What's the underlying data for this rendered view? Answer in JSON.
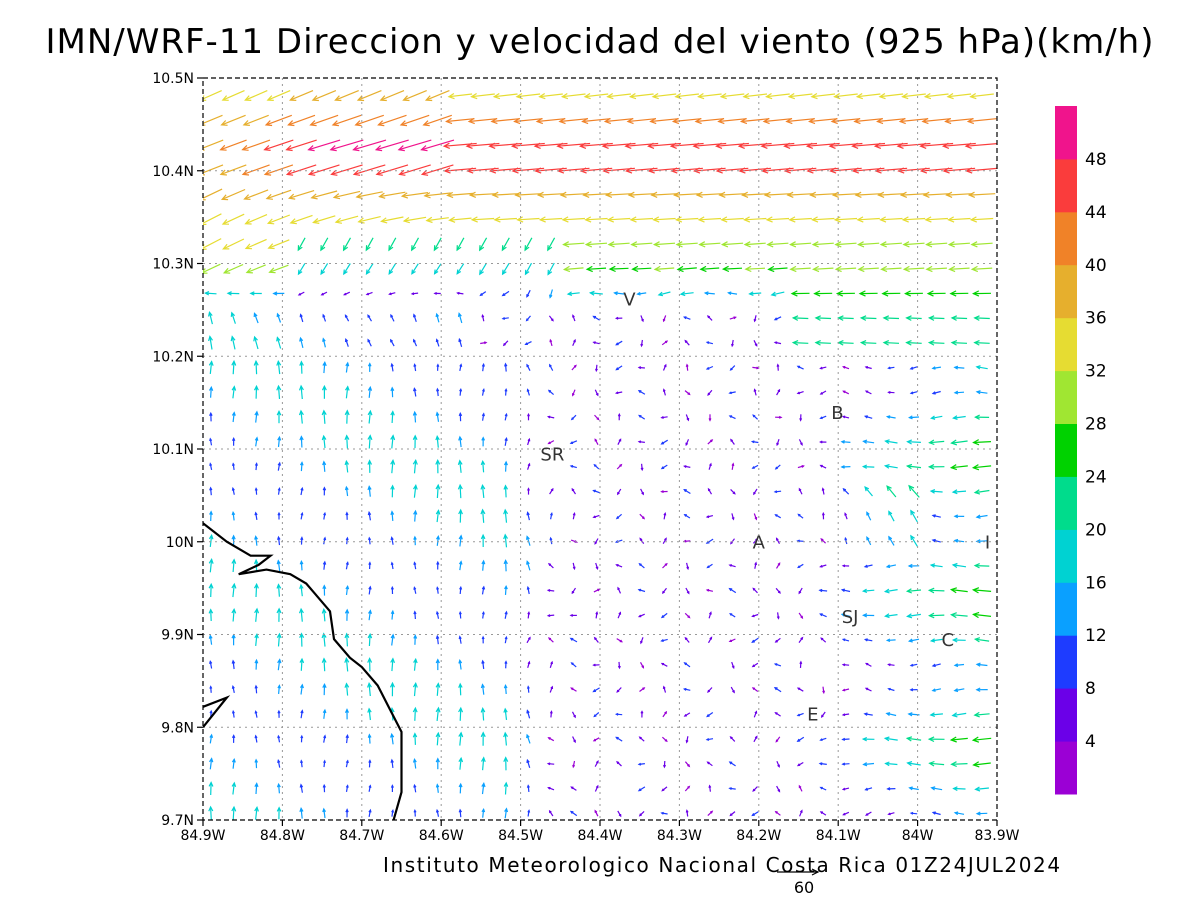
{
  "chart_data": {
    "type": "vector_field",
    "title": "IMN/WRF-11 Direccion y velocidad del viento (925 hPa)(km/h)",
    "footer": "Instituto Meteorologico Nacional Costa Rica 01Z24JUL2024",
    "reference_vector_label": "60",
    "x_axis": {
      "range": [
        -84.9,
        -83.9
      ],
      "ticks": [
        "84.9W",
        "84.8W",
        "84.7W",
        "84.6W",
        "84.5W",
        "84.4W",
        "84.3W",
        "84.2W",
        "84.1W",
        "84W",
        "83.9W"
      ]
    },
    "y_axis": {
      "range": [
        9.7,
        10.5
      ],
      "ticks": [
        "9.7N",
        "9.8N",
        "9.9N",
        "10N",
        "10.1N",
        "10.2N",
        "10.3N",
        "10.4N",
        "10.5N"
      ]
    },
    "grid": "dotted",
    "colorbar": {
      "labels": [
        "4",
        "8",
        "12",
        "16",
        "20",
        "24",
        "28",
        "32",
        "36",
        "40",
        "44",
        "48"
      ],
      "colors": [
        "#9b00d5",
        "#6b00e8",
        "#1e3cff",
        "#0aa0ff",
        "#00d2d2",
        "#00dc8c",
        "#00d200",
        "#a0e632",
        "#e6dc32",
        "#e6af2d",
        "#f08228",
        "#fa3c3c",
        "#f0148c"
      ]
    },
    "locations": [
      {
        "label": "V",
        "lon": -84.363,
        "lat": 10.262
      },
      {
        "label": "B",
        "lon": -84.101,
        "lat": 10.14
      },
      {
        "label": "SR",
        "lon": -84.46,
        "lat": 10.095
      },
      {
        "label": "A",
        "lon": -84.2,
        "lat": 10.0
      },
      {
        "label": "I",
        "lon": -83.912,
        "lat": 10.0
      },
      {
        "label": "SJ",
        "lon": -84.085,
        "lat": 9.92
      },
      {
        "label": "C",
        "lon": -83.962,
        "lat": 9.895
      },
      {
        "label": "E",
        "lon": -84.132,
        "lat": 9.815
      }
    ],
    "coastline": [
      [
        -84.9,
        10.02
      ],
      [
        -84.87,
        10.0
      ],
      [
        -84.84,
        9.985
      ],
      [
        -84.815,
        9.985
      ],
      [
        -84.83,
        9.975
      ],
      [
        -84.855,
        9.965
      ],
      [
        -84.82,
        9.97
      ],
      [
        -84.79,
        9.965
      ],
      [
        -84.77,
        9.955
      ],
      [
        -84.76,
        9.945
      ],
      [
        -84.74,
        9.925
      ],
      [
        -84.735,
        9.895
      ],
      [
        -84.715,
        9.875
      ],
      [
        -84.7,
        9.865
      ],
      [
        -84.68,
        9.845
      ],
      [
        -84.665,
        9.82
      ],
      [
        -84.65,
        9.795
      ],
      [
        -84.65,
        9.73
      ],
      [
        -84.66,
        9.7
      ]
    ],
    "coastline2": [
      [
        -84.9,
        9.822
      ],
      [
        -84.87,
        9.832
      ],
      [
        -84.9,
        9.8
      ]
    ],
    "wind_regions": [
      {
        "name": "north_jet",
        "lat_range": [
          10.25,
          10.5
        ],
        "lon_range": [
          -84.9,
          -83.9
        ],
        "direction": "westward",
        "speed_kmh": [
          28,
          48
        ]
      },
      {
        "name": "southwest_lowlands",
        "lat_range": [
          9.7,
          10.2
        ],
        "lon_range": [
          -84.9,
          -84.52
        ],
        "direction": "northward",
        "speed_kmh": [
          12,
          22
        ]
      },
      {
        "name": "central_valley",
        "lat_range": [
          9.8,
          10.2
        ],
        "lon_range": [
          -84.5,
          -84.15
        ],
        "direction": "variable",
        "speed_kmh": [
          2,
          16
        ]
      },
      {
        "name": "eastern_slopes",
        "lat_range": [
          9.7,
          10.2
        ],
        "lon_range": [
          -84.15,
          -83.9
        ],
        "direction": "westward",
        "speed_kmh": [
          4,
          28
        ]
      }
    ]
  }
}
